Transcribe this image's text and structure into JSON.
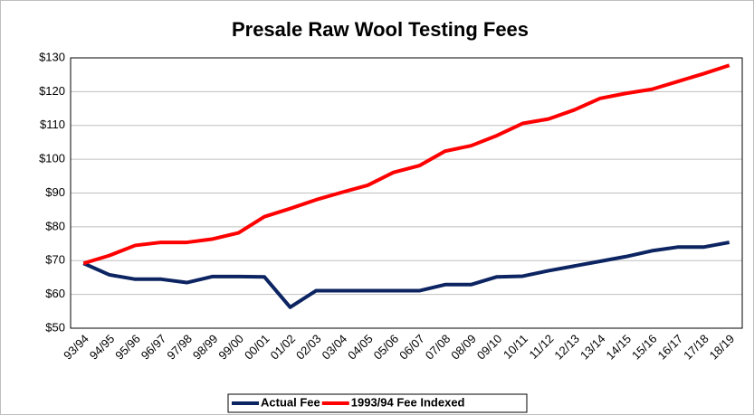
{
  "chart_data": {
    "type": "line",
    "title": "Presale Raw Wool Testing Fees",
    "categories": [
      "93/94",
      "94/95",
      "95/96",
      "96/97",
      "97/98",
      "98/99",
      "99/00",
      "00/01",
      "01/02",
      "02/03",
      "03/04",
      "04/05",
      "05/06",
      "06/07",
      "07/08",
      "08/09",
      "09/10",
      "10/11",
      "11/12",
      "12/13",
      "13/14",
      "14/15",
      "15/16",
      "16/17",
      "17/18",
      "18/19"
    ],
    "series": [
      {
        "name": "Actual Fee",
        "color": "#0c2461",
        "values": [
          69.2,
          65.8,
          64.5,
          64.5,
          63.5,
          65.3,
          65.3,
          65.2,
          56.2,
          61.1,
          61.1,
          61.1,
          61.1,
          61.1,
          62.9,
          62.9,
          65.2,
          65.4,
          67,
          68.4,
          69.8,
          71.2,
          72.9,
          74,
          74,
          75.4
        ]
      },
      {
        "name": "1993/94 Fee Indexed",
        "color": "#ff0000",
        "values": [
          69.2,
          71.5,
          74.5,
          75.4,
          75.4,
          76.4,
          78.2,
          83,
          85.4,
          88,
          90.2,
          92.3,
          96.1,
          98.1,
          102.4,
          104,
          107,
          110.6,
          111.9,
          114.6,
          118,
          119.5,
          120.7,
          123,
          125.3,
          127.8
        ]
      }
    ],
    "ylim": [
      50,
      130
    ],
    "yticks": [
      {
        "value": 50,
        "label": "$50"
      },
      {
        "value": 60,
        "label": "$60"
      },
      {
        "value": 70,
        "label": "$70"
      },
      {
        "value": 80,
        "label": "$80"
      },
      {
        "value": 90,
        "label": "$90"
      },
      {
        "value": 100,
        "label": "$100"
      },
      {
        "value": 110,
        "label": "$110"
      },
      {
        "value": 120,
        "label": "$120"
      },
      {
        "value": 130,
        "label": "$130"
      }
    ],
    "grid": true
  }
}
